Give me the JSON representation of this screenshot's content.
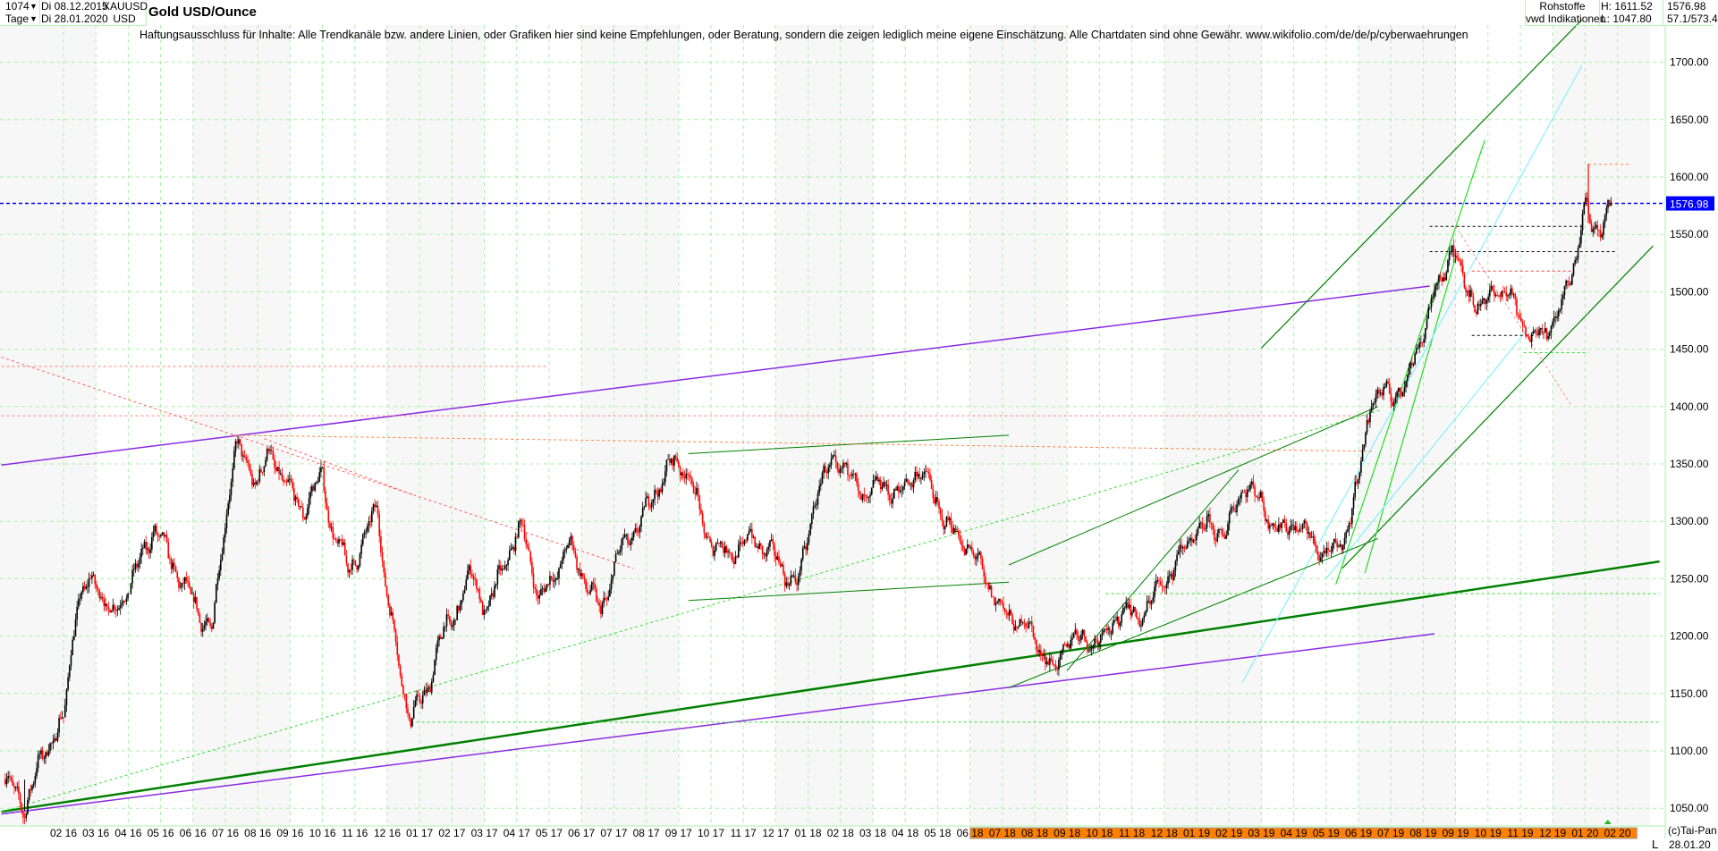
{
  "header": {
    "bars_count": "1074",
    "period": "Tage",
    "date_from": "Di 08.12.2015",
    "date_to": "Di 28.01.2020",
    "symbol": "XAUUSD",
    "currency": "USD",
    "title": "Gold USD/Ounce",
    "category": "Rohstoffe",
    "source": "vwd Indikationen",
    "high": "H: 1611.52",
    "low": "L: 1047.80",
    "last": "1576.98",
    "extra": "57.1/573.4"
  },
  "disclaimer": "Haftungsausschluss für Inhalte: Alle Trendkanäle bzw. andere Linien, oder Grafiken hier sind keine Empfehlungen, oder Beratung, sondern die zeigen lediglich meine eigene Einschätzung. Alle Chartdaten sind ohne Gewähr.  www.wikifolio.com/de/de/p/cyberwaehrungen",
  "footer": {
    "copyright": "(c)Tai-Pan",
    "scale_mode": "L",
    "last_date": "28.01.20"
  },
  "colors": {
    "up": "#000000",
    "down": "#ff0000",
    "grid": "#a8f0a8",
    "current": "#0000ff",
    "highlight": "#ff8000"
  },
  "chart_data": {
    "type": "candlestick",
    "title": "Gold USD/Ounce",
    "ylim": [
      1030,
      1760
    ],
    "yticks": [
      1050,
      1100,
      1150,
      1200,
      1250,
      1300,
      1350,
      1400,
      1450,
      1500,
      1550,
      1600,
      1650,
      1700
    ],
    "ytick_labels": [
      "1050.00",
      "1100.00",
      "1150.00",
      "1200.00",
      "1250.00",
      "1300.00",
      "1350.00",
      "1400.00",
      "1450.00",
      "1500.00",
      "1550.00",
      "1600.00",
      "1650.00",
      "1700.00"
    ],
    "current_price": 1576.98,
    "current_label": "1576.98",
    "high": 1611.52,
    "low": 1047.8,
    "bars": 1074,
    "xtick_labels": [
      "02 16",
      "03 16",
      "04 16",
      "05 16",
      "06 16",
      "07 16",
      "08 16",
      "09 16",
      "10 16",
      "11 16",
      "12 16",
      "01 17",
      "02 17",
      "03 17",
      "04 17",
      "05 17",
      "06 17",
      "07 17",
      "08 17",
      "09 17",
      "10 17",
      "11 17",
      "12 17",
      "01 18",
      "02 18",
      "03 18",
      "04 18",
      "05 18",
      "06 18",
      "07 18",
      "08 18",
      "09 18",
      "10 18",
      "11 18",
      "12 18",
      "01 19",
      "02 19",
      "03 19",
      "04 19",
      "05 19",
      "06 19",
      "07 19",
      "08 19",
      "09 19",
      "10 19",
      "11 19",
      "12 19",
      "01 20",
      "02 20"
    ],
    "highlight_from_month": 29,
    "price_path_note": "t = months since Feb 2016",
    "price_path": [
      [
        -1.8,
        1075
      ],
      [
        -1.4,
        1060
      ],
      [
        -1.2,
        1050
      ],
      [
        -0.6,
        1100
      ],
      [
        0,
        1125
      ],
      [
        0.4,
        1230
      ],
      [
        1,
        1250
      ],
      [
        1.5,
        1215
      ],
      [
        2.3,
        1260
      ],
      [
        2.8,
        1295
      ],
      [
        3.6,
        1250
      ],
      [
        4.3,
        1215
      ],
      [
        4.6,
        1205
      ],
      [
        4.9,
        1280
      ],
      [
        5.3,
        1365
      ],
      [
        6,
        1335
      ],
      [
        6.4,
        1360
      ],
      [
        7,
        1325
      ],
      [
        7.4,
        1310
      ],
      [
        8,
        1340
      ],
      [
        8.3,
        1290
      ],
      [
        8.8,
        1260
      ],
      [
        9.2,
        1275
      ],
      [
        9.5,
        1300
      ],
      [
        9.7,
        1320
      ],
      [
        9.9,
        1250
      ],
      [
        10.4,
        1170
      ],
      [
        10.7,
        1128
      ],
      [
        11.2,
        1150
      ],
      [
        11.6,
        1195
      ],
      [
        12.1,
        1220
      ],
      [
        12.6,
        1255
      ],
      [
        13.1,
        1220
      ],
      [
        13.6,
        1265
      ],
      [
        14.2,
        1295
      ],
      [
        14.7,
        1230
      ],
      [
        15.1,
        1250
      ],
      [
        15.6,
        1280
      ],
      [
        16.1,
        1250
      ],
      [
        16.6,
        1220
      ],
      [
        17.1,
        1270
      ],
      [
        17.6,
        1290
      ],
      [
        18.2,
        1320
      ],
      [
        18.7,
        1350
      ],
      [
        19.3,
        1345
      ],
      [
        19.8,
        1290
      ],
      [
        20.5,
        1270
      ],
      [
        21.2,
        1285
      ],
      [
        21.8,
        1275
      ],
      [
        22.3,
        1255
      ],
      [
        22.7,
        1245
      ],
      [
        23.2,
        1320
      ],
      [
        23.8,
        1355
      ],
      [
        24.3,
        1340
      ],
      [
        24.8,
        1320
      ],
      [
        25.3,
        1335
      ],
      [
        25.8,
        1320
      ],
      [
        26.3,
        1345
      ],
      [
        26.8,
        1330
      ],
      [
        27.3,
        1295
      ],
      [
        27.9,
        1280
      ],
      [
        28.5,
        1250
      ],
      [
        29,
        1220
      ],
      [
        29.7,
        1210
      ],
      [
        30.4,
        1180
      ],
      [
        30.6,
        1165
      ],
      [
        31,
        1200
      ],
      [
        31.6,
        1195
      ],
      [
        32.2,
        1200
      ],
      [
        32.7,
        1225
      ],
      [
        33.2,
        1215
      ],
      [
        33.8,
        1240
      ],
      [
        34.4,
        1265
      ],
      [
        34.9,
        1290
      ],
      [
        35.4,
        1295
      ],
      [
        35.9,
        1290
      ],
      [
        36.5,
        1335
      ],
      [
        37.1,
        1310
      ],
      [
        37.6,
        1290
      ],
      [
        38.1,
        1300
      ],
      [
        38.6,
        1280
      ],
      [
        39.2,
        1270
      ],
      [
        39.6,
        1290
      ],
      [
        40,
        1335
      ],
      [
        40.4,
        1410
      ],
      [
        41,
        1410
      ],
      [
        41.5,
        1420
      ],
      [
        41.9,
        1460
      ],
      [
        42.4,
        1500
      ],
      [
        42.9,
        1540
      ],
      [
        43.3,
        1505
      ],
      [
        43.8,
        1485
      ],
      [
        44.3,
        1505
      ],
      [
        44.8,
        1490
      ],
      [
        45.3,
        1460
      ],
      [
        45.7,
        1465
      ],
      [
        46.2,
        1480
      ],
      [
        46.7,
        1530
      ],
      [
        47,
        1575
      ],
      [
        47.2,
        1555
      ],
      [
        47.5,
        1560
      ],
      [
        47.8,
        1577
      ]
    ],
    "trendlines": [
      {
        "name": "purple-upper",
        "color": "#8a2be2",
        "width": 1.5,
        "dash": "",
        "p1": [
          -1.92,
          1349
        ],
        "p2": [
          42.2,
          1505
        ]
      },
      {
        "name": "purple-lower",
        "color": "#8a2be2",
        "width": 1.5,
        "dash": "",
        "p1": [
          -1.92,
          1045
        ],
        "p2": [
          42.35,
          1202
        ]
      },
      {
        "name": "green-long-thick",
        "color": "#008000",
        "width": 2.5,
        "dash": "",
        "p1": [
          -1.92,
          1047
        ],
        "p2": [
          49.3,
          1265
        ]
      },
      {
        "name": "green-dashed-long",
        "color": "#33dd33",
        "width": 1,
        "dash": "3,3",
        "p1": [
          -1.92,
          1047
        ],
        "p2": [
          40.7,
          1397
        ]
      },
      {
        "name": "channel-top",
        "color": "#008000",
        "width": 1.2,
        "dash": "",
        "p1": [
          37,
          1451
        ],
        "p2": [
          46.9,
          1737
        ]
      },
      {
        "name": "channel-bottom",
        "color": "#008000",
        "width": 1.2,
        "dash": "",
        "p1": [
          39.5,
          1259
        ],
        "p2": [
          49.1,
          1540
        ]
      },
      {
        "name": "steep-green-1",
        "color": "#22dd22",
        "width": 1.2,
        "dash": "",
        "p1": [
          39.3,
          1245
        ],
        "p2": [
          43.9,
          1632
        ]
      },
      {
        "name": "steep-green-2",
        "color": "#22dd22",
        "width": 1.2,
        "dash": "",
        "p1": [
          40.2,
          1255
        ],
        "p2": [
          43.0,
          1530
        ]
      },
      {
        "name": "cyan-1",
        "color": "#88eeff",
        "width": 1.2,
        "dash": "",
        "p1": [
          36.4,
          1159
        ],
        "p2": [
          46.9,
          1697
        ]
      },
      {
        "name": "cyan-2",
        "color": "#88eeff",
        "width": 1.2,
        "dash": "",
        "p1": [
          39.0,
          1250
        ],
        "p2": [
          45.3,
          1470
        ]
      },
      {
        "name": "mid-channel-top",
        "color": "#008000",
        "width": 1,
        "dash": "",
        "p1": [
          29.2,
          1262
        ],
        "p2": [
          40.6,
          1400
        ]
      },
      {
        "name": "mid-channel-low",
        "color": "#008000",
        "width": 1,
        "dash": "",
        "p1": [
          29.2,
          1155
        ],
        "p2": [
          40.6,
          1285
        ]
      },
      {
        "name": "small-channel-a",
        "color": "#008000",
        "width": 1,
        "dash": "",
        "p1": [
          31.0,
          1170
        ],
        "p2": [
          36.3,
          1345
        ]
      },
      {
        "name": "range-top-2017",
        "color": "#008000",
        "width": 1,
        "dash": "",
        "p1": [
          19.3,
          1359
        ],
        "p2": [
          29.2,
          1375
        ]
      },
      {
        "name": "range-low-2017",
        "color": "#008000",
        "width": 1,
        "dash": "",
        "p1": [
          19.3,
          1231
        ],
        "p2": [
          29.2,
          1247
        ]
      },
      {
        "name": "red-diag-dashed",
        "color": "#ff6060",
        "width": 1,
        "dash": "3,3",
        "p1": [
          -1.92,
          1443
        ],
        "p2": [
          17.6,
          1259
        ]
      },
      {
        "name": "red-diag-dashed-2",
        "color": "#ff6060",
        "width": 1,
        "dash": "3,3",
        "p1": [
          6.2,
          1372
        ],
        "p2": [
          10.8,
          1323
        ]
      },
      {
        "name": "orange-dashed",
        "color": "#ff8040",
        "width": 1,
        "dash": "3,3",
        "p1": [
          5.2,
          1375
        ],
        "p2": [
          40.5,
          1361
        ]
      },
      {
        "name": "red-h-1435",
        "color": "#ff8080",
        "width": 1,
        "dash": "3,3",
        "p1": [
          -1.92,
          1435
        ],
        "p2": [
          14.9,
          1435
        ]
      },
      {
        "name": "red-h-1392",
        "color": "#ff8080",
        "width": 1,
        "dash": "3,3",
        "p1": [
          -1.92,
          1392
        ],
        "p2": [
          40.5,
          1392
        ]
      },
      {
        "name": "red-diag-top",
        "color": "#ff9090",
        "width": 1,
        "dash": "3,3",
        "p1": [
          43.0,
          1557
        ],
        "p2": [
          46.6,
          1400
        ]
      },
      {
        "name": "red-h-1611",
        "color": "#ff8040",
        "width": 1,
        "dash": "3,3",
        "p1": [
          47.1,
          1611
        ],
        "p2": [
          48.4,
          1611
        ]
      },
      {
        "name": "red-h-1518",
        "color": "#ff4040",
        "width": 1,
        "dash": "3,3",
        "p1": [
          43.5,
          1518
        ],
        "p2": [
          46.6,
          1518
        ]
      },
      {
        "name": "green-h-1125",
        "color": "#33dd33",
        "width": 1,
        "dash": "3,3",
        "p1": [
          10.9,
          1125
        ],
        "p2": [
          49.3,
          1125
        ]
      },
      {
        "name": "green-h-1237",
        "color": "#33dd33",
        "width": 1,
        "dash": "3,3",
        "p1": [
          32.2,
          1237
        ],
        "p2": [
          49.3,
          1237
        ]
      },
      {
        "name": "green-h-1447",
        "color": "#33dd33",
        "width": 1,
        "dash": "3,3",
        "p1": [
          45.1,
          1447
        ],
        "p2": [
          47.1,
          1447
        ]
      },
      {
        "name": "black-h-1557",
        "color": "#000000",
        "width": 1,
        "dash": "3,3",
        "p1": [
          42.2,
          1557
        ],
        "p2": [
          47.0,
          1557
        ]
      },
      {
        "name": "black-h-1535",
        "color": "#000000",
        "width": 1,
        "dash": "3,3",
        "p1": [
          42.2,
          1535
        ],
        "p2": [
          48.0,
          1535
        ]
      },
      {
        "name": "black-h-1462",
        "color": "#000000",
        "width": 1,
        "dash": "3,3",
        "p1": [
          43.5,
          1462
        ],
        "p2": [
          45.5,
          1462
        ]
      }
    ]
  }
}
